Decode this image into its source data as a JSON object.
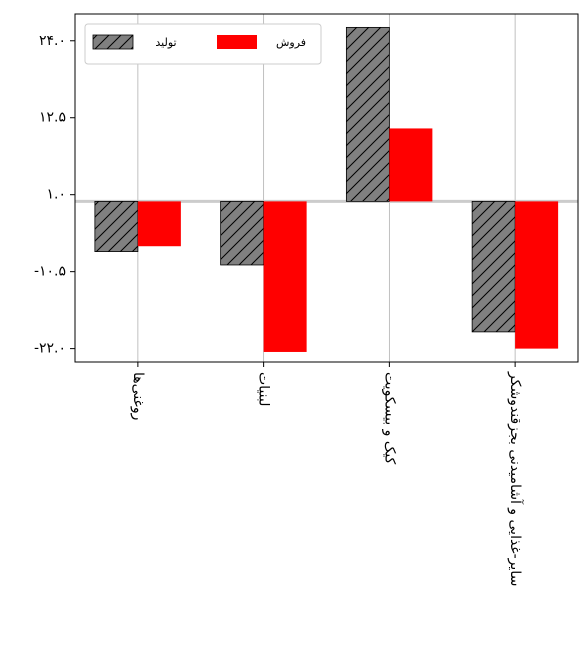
{
  "chart_data": {
    "type": "bar",
    "categories": [
      "روغنی‌ها",
      "لبنیات",
      "کیک و بیسکویت",
      "سایر-غذایی و آشامیدنی بجزقندوشکر"
    ],
    "series": [
      {
        "name": "تولید",
        "values": [
          -7.5,
          -9.5,
          26.0,
          -19.5
        ],
        "color": "#808080",
        "hatch": true
      },
      {
        "name": "فروش",
        "values": [
          -6.7,
          -22.5,
          10.9,
          -22.0
        ],
        "color": "#ff0000",
        "hatch": false
      }
    ],
    "ylim": [
      -24.0,
      28.0
    ],
    "yticks": [
      24.0,
      12.5,
      1.0,
      -10.5,
      -22.0
    ],
    "yticklabels": [
      "۲۴.۰",
      "۱۲.۵",
      "۱.۰",
      "-۱۰.۵",
      "-۲۲.۰"
    ],
    "zero_line_color": "#cccccc",
    "grid": "vertical",
    "legend_position": "top-left",
    "title": "",
    "xlabel": "",
    "ylabel": ""
  }
}
